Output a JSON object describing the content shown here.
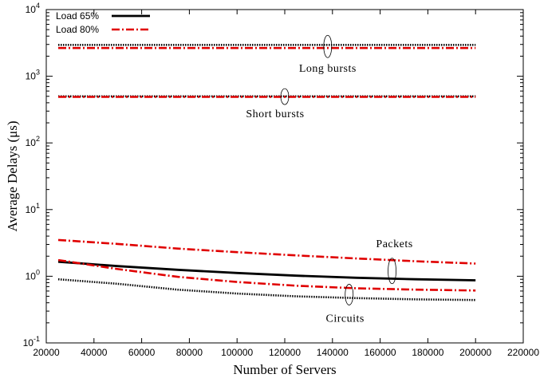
{
  "chart_data": {
    "type": "line",
    "xlabel": "Number of Servers",
    "ylabel": "Average Delays (μs)",
    "xlim": [
      20000,
      220000
    ],
    "ylim": [
      0.1,
      10000
    ],
    "yscale": "log",
    "grid": false,
    "legend_position": "top-left",
    "x_ticks": [
      20000,
      40000,
      60000,
      80000,
      100000,
      120000,
      140000,
      160000,
      180000,
      200000,
      220000
    ],
    "x_tick_labels": [
      "20000",
      "40000",
      "60000",
      "80000",
      "100000",
      "120000",
      "140000",
      "160000",
      "180000",
      "200000",
      "220000"
    ],
    "y_ticks": [
      0.1,
      1,
      10,
      100,
      1000,
      10000
    ],
    "y_tick_labels": [
      {
        "base": "10",
        "exp": "-1"
      },
      {
        "base": "10",
        "exp": "0"
      },
      {
        "base": "10",
        "exp": "1"
      },
      {
        "base": "10",
        "exp": "2"
      },
      {
        "base": "10",
        "exp": "3"
      },
      {
        "base": "10",
        "exp": "4"
      }
    ],
    "legend": [
      {
        "label": "Load 65%",
        "color": "#000000",
        "style": "solid"
      },
      {
        "label": "Load 80%",
        "color": "#e00000",
        "style": "dashdot"
      }
    ],
    "series": [
      {
        "group": "Long bursts",
        "load": "Load 65%",
        "color": "#000000",
        "style": "dotted",
        "x": [
          25000,
          200000
        ],
        "y": [
          2950,
          2950
        ]
      },
      {
        "group": "Long bursts",
        "load": "Load 80%",
        "color": "#e00000",
        "style": "dashdot",
        "x": [
          25000,
          200000
        ],
        "y": [
          2650,
          2650
        ]
      },
      {
        "group": "Short bursts",
        "load": "Load 65%",
        "color": "#000000",
        "style": "dotted",
        "x": [
          25000,
          200000
        ],
        "y": [
          500,
          500
        ]
      },
      {
        "group": "Short bursts",
        "load": "Load 80%",
        "color": "#e00000",
        "style": "dashdot",
        "x": [
          25000,
          200000
        ],
        "y": [
          490,
          490
        ]
      },
      {
        "group": "Packets",
        "load": "Load 65%",
        "color": "#000000",
        "style": "solid",
        "x": [
          25000,
          50000,
          75000,
          100000,
          125000,
          150000,
          175000,
          200000
        ],
        "y": [
          1.65,
          1.42,
          1.25,
          1.12,
          1.02,
          0.95,
          0.9,
          0.87
        ]
      },
      {
        "group": "Packets",
        "load": "Load 80%",
        "color": "#e00000",
        "style": "dashdot",
        "x": [
          25000,
          50000,
          75000,
          100000,
          125000,
          150000,
          175000,
          200000
        ],
        "y": [
          3.5,
          3.05,
          2.6,
          2.3,
          2.05,
          1.85,
          1.68,
          1.55
        ]
      },
      {
        "group": "Circuits",
        "load": "Load 65%",
        "color": "#000000",
        "style": "dotted",
        "x": [
          25000,
          50000,
          75000,
          100000,
          125000,
          150000,
          175000,
          200000
        ],
        "y": [
          0.9,
          0.77,
          0.63,
          0.55,
          0.5,
          0.47,
          0.45,
          0.44
        ]
      },
      {
        "group": "Circuits",
        "load": "Load 80%",
        "color": "#e00000",
        "style": "dashdot",
        "x": [
          25000,
          50000,
          75000,
          100000,
          125000,
          150000,
          175000,
          200000
        ],
        "y": [
          1.75,
          1.28,
          0.98,
          0.82,
          0.72,
          0.66,
          0.63,
          0.61
        ]
      }
    ],
    "annotations": [
      {
        "label": "Long bursts",
        "x": 138000,
        "y": 2800
      },
      {
        "label": "Short bursts",
        "x": 120000,
        "y": 495
      },
      {
        "label": "Packets",
        "x": 165000,
        "y": 1.2
      },
      {
        "label": "Circuits",
        "x": 147000,
        "y": 0.53
      }
    ]
  }
}
